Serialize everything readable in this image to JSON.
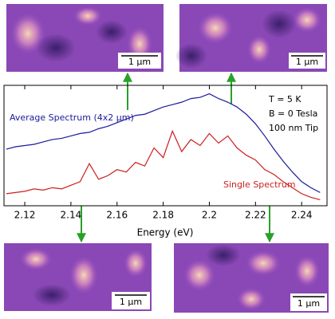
{
  "chart_data": {
    "type": "line",
    "x_label": "Energy (eV)",
    "x": [
      2.112,
      2.116,
      2.12,
      2.124,
      2.128,
      2.132,
      2.136,
      2.14,
      2.144,
      2.148,
      2.152,
      2.156,
      2.16,
      2.164,
      2.168,
      2.172,
      2.176,
      2.18,
      2.184,
      2.188,
      2.192,
      2.196,
      2.2,
      2.204,
      2.208,
      2.212,
      2.216,
      2.22,
      2.224,
      2.228,
      2.232,
      2.236,
      2.24,
      2.244,
      2.248
    ],
    "series": [
      {
        "name": "Average Spectrum (4x2 μm)",
        "color": "#1a1a9a",
        "values": [
          0.47,
          0.49,
          0.5,
          0.51,
          0.53,
          0.55,
          0.56,
          0.58,
          0.6,
          0.61,
          0.64,
          0.66,
          0.69,
          0.72,
          0.75,
          0.76,
          0.79,
          0.82,
          0.84,
          0.86,
          0.89,
          0.9,
          0.93,
          0.89,
          0.86,
          0.82,
          0.76,
          0.68,
          0.58,
          0.47,
          0.37,
          0.28,
          0.2,
          0.15,
          0.11
        ]
      },
      {
        "name": "Single Spectrum",
        "color": "#cc1f1f",
        "values": [
          0.1,
          0.11,
          0.12,
          0.14,
          0.13,
          0.15,
          0.14,
          0.17,
          0.2,
          0.35,
          0.22,
          0.25,
          0.3,
          0.28,
          0.36,
          0.33,
          0.48,
          0.4,
          0.62,
          0.45,
          0.55,
          0.5,
          0.6,
          0.52,
          0.58,
          0.48,
          0.42,
          0.38,
          0.3,
          0.26,
          0.2,
          0.15,
          0.1,
          0.07,
          0.05
        ]
      }
    ],
    "xlim": [
      2.111,
      2.251
    ],
    "xticks": [
      2.12,
      2.14,
      2.16,
      2.18,
      2.2,
      2.22,
      2.24
    ],
    "ylim": [
      0,
      1
    ],
    "annotations": [
      "T = 5 K",
      "B = 0 Tesla",
      "100 nm Tip"
    ],
    "image_scale_labels": [
      "1 μm",
      "1 μm",
      "1 μm",
      "1 μm"
    ]
  }
}
